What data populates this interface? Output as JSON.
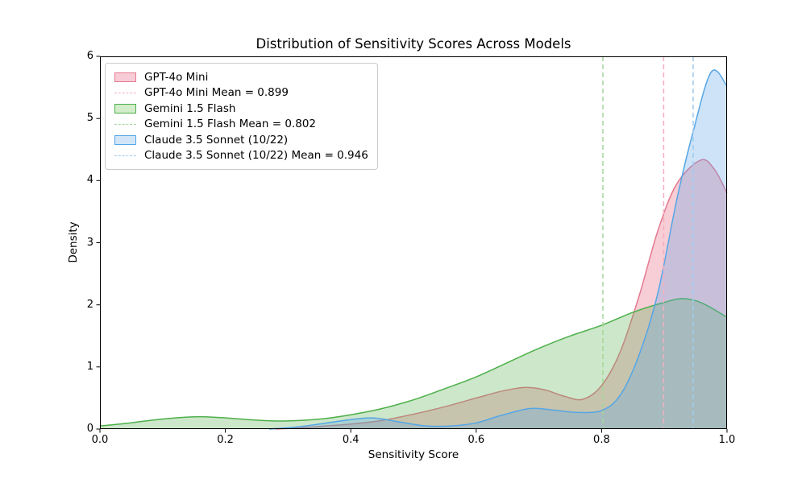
{
  "figure": {
    "background": "#ffffff",
    "frame_color": "#000000"
  },
  "chart_data": {
    "type": "area",
    "subtype": "kde-density",
    "title": "Distribution of Sensitivity Scores Across Models",
    "xlabel": "Sensitivity Score",
    "ylabel": "Density",
    "xlim": [
      0.0,
      1.0
    ],
    "ylim": [
      0,
      6
    ],
    "x_ticks": [
      "0.0",
      "0.2",
      "0.4",
      "0.6",
      "0.8",
      "1.0"
    ],
    "y_ticks": [
      "0",
      "1",
      "2",
      "3",
      "4",
      "5",
      "6"
    ],
    "grid": false,
    "legend_position": "upper left",
    "series": [
      {
        "name": "GPT-4o Mini",
        "mean": 0.899,
        "mean_label": "GPT-4o Mini Mean = 0.899",
        "line_color": "#e5798f",
        "fill_color": "rgba(227,90,118,0.30)",
        "mean_color": "#f4afc0",
        "swatch_fill": "#f8ccd6",
        "points": [
          [
            0.28,
            0.0
          ],
          [
            0.32,
            0.02
          ],
          [
            0.36,
            0.05
          ],
          [
            0.4,
            0.08
          ],
          [
            0.45,
            0.14
          ],
          [
            0.5,
            0.24
          ],
          [
            0.55,
            0.36
          ],
          [
            0.6,
            0.5
          ],
          [
            0.645,
            0.62
          ],
          [
            0.68,
            0.67
          ],
          [
            0.71,
            0.63
          ],
          [
            0.74,
            0.53
          ],
          [
            0.77,
            0.48
          ],
          [
            0.8,
            0.7
          ],
          [
            0.83,
            1.25
          ],
          [
            0.86,
            2.15
          ],
          [
            0.89,
            3.2
          ],
          [
            0.92,
            3.95
          ],
          [
            0.958,
            4.33
          ],
          [
            0.98,
            4.18
          ],
          [
            1.0,
            3.8
          ]
        ]
      },
      {
        "name": "Gemini 1.5 Flash",
        "mean": 0.802,
        "mean_label": "Gemini 1.5 Flash Mean = 0.802",
        "line_color": "#4db04a",
        "fill_color": "rgba(88,176,78,0.30)",
        "mean_color": "#a3d79b",
        "swatch_fill": "#d3ecca",
        "points": [
          [
            0.0,
            0.05
          ],
          [
            0.04,
            0.09
          ],
          [
            0.08,
            0.14
          ],
          [
            0.12,
            0.18
          ],
          [
            0.16,
            0.2
          ],
          [
            0.2,
            0.18
          ],
          [
            0.24,
            0.15
          ],
          [
            0.28,
            0.13
          ],
          [
            0.32,
            0.14
          ],
          [
            0.36,
            0.17
          ],
          [
            0.4,
            0.23
          ],
          [
            0.45,
            0.33
          ],
          [
            0.5,
            0.47
          ],
          [
            0.55,
            0.65
          ],
          [
            0.6,
            0.84
          ],
          [
            0.65,
            1.07
          ],
          [
            0.7,
            1.3
          ],
          [
            0.75,
            1.5
          ],
          [
            0.8,
            1.67
          ],
          [
            0.85,
            1.88
          ],
          [
            0.9,
            2.04
          ],
          [
            0.93,
            2.1
          ],
          [
            0.96,
            2.03
          ],
          [
            1.0,
            1.8
          ]
        ]
      },
      {
        "name": "Claude 3.5 Sonnet (10/22)",
        "mean": 0.946,
        "mean_label": "Claude 3.5 Sonnet (10/22) Mean = 0.946",
        "line_color": "#55a6e6",
        "fill_color": "rgba(93,163,229,0.30)",
        "mean_color": "#a0ccf0",
        "swatch_fill": "#d0e6f8",
        "points": [
          [
            0.27,
            0.0
          ],
          [
            0.31,
            0.03
          ],
          [
            0.35,
            0.08
          ],
          [
            0.39,
            0.14
          ],
          [
            0.435,
            0.18
          ],
          [
            0.48,
            0.11
          ],
          [
            0.52,
            0.05
          ],
          [
            0.56,
            0.05
          ],
          [
            0.6,
            0.1
          ],
          [
            0.64,
            0.22
          ],
          [
            0.685,
            0.33
          ],
          [
            0.72,
            0.31
          ],
          [
            0.76,
            0.27
          ],
          [
            0.8,
            0.3
          ],
          [
            0.83,
            0.55
          ],
          [
            0.86,
            1.2
          ],
          [
            0.89,
            2.2
          ],
          [
            0.92,
            3.7
          ],
          [
            0.945,
            4.75
          ],
          [
            0.975,
            5.75
          ],
          [
            1.0,
            5.52
          ]
        ]
      }
    ]
  }
}
